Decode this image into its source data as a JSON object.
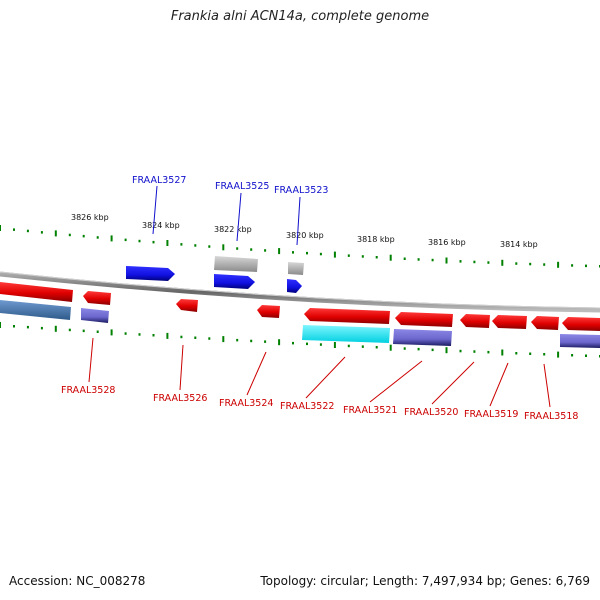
{
  "title": "Frankia alni ACN14a, complete genome",
  "footer": {
    "accession": "Accession: NC_008278",
    "summary": "Topology: circular; Length: 7,497,934 bp; Genes: 6,769"
  },
  "ruler": {
    "ticks": [
      "3826 kbp",
      "3824 kbp",
      "3822 kbp",
      "3820 kbp",
      "3818 kbp",
      "3816 kbp",
      "3814 kbp"
    ]
  },
  "colors": {
    "forward_cds": "#1010e0",
    "reverse_cds": "#e00000",
    "forward_label": "#1010cc",
    "reverse_label": "#cc0000",
    "tick": "#008000",
    "backbone": "#777777"
  },
  "genes": {
    "forward": [
      "FRAAL3527",
      "FRAAL3525",
      "FRAAL3523"
    ],
    "reverse": [
      "FRAAL3528",
      "FRAAL3526",
      "FRAAL3524",
      "FRAAL3522",
      "FRAAL3521",
      "FRAAL3520",
      "FRAAL3519",
      "FRAAL3518"
    ]
  }
}
